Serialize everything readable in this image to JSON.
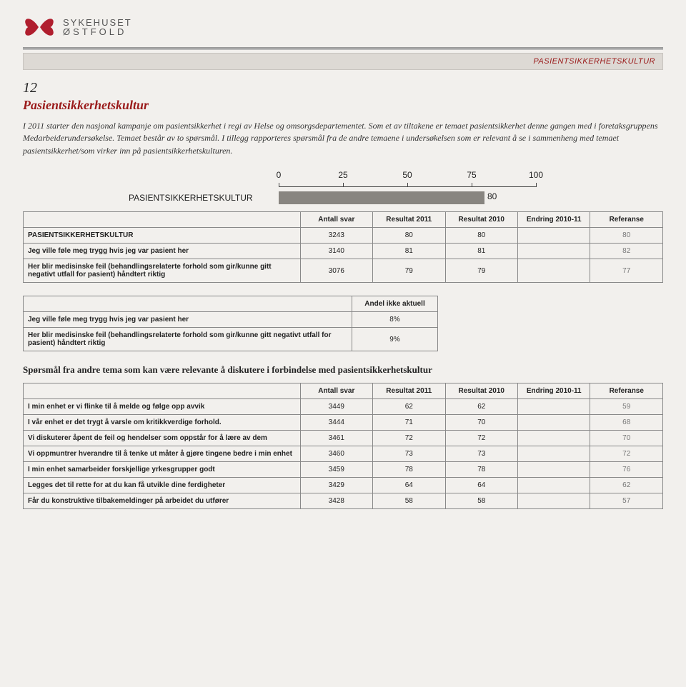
{
  "logo": {
    "line1": "SYKEHUSET",
    "line2": "ØSTFOLD"
  },
  "header_band": "PASIENTSIKKERHETSKULTUR",
  "page_number": "12",
  "title": "Pasientsikkerhetskultur",
  "intro": "I 2011 starter den nasjonal kampanje om pasientsikkerhet i regi av Helse og omsorgsdepartementet. Som et av tiltakene er temaet pasientsikkerhet denne gangen med i foretaksgruppens Medarbeiderundersøkelse. Temaet består av to spørsmål. I tillegg rapporteres spørsmål fra de andre temaene i undersøkelsen som er relevant å se i sammenheng med temaet pasientsikkerhet/som virker inn på pasientsikkerhetskulturen.",
  "chart": {
    "label": "PASIENTSIKKERHETSKULTUR",
    "value": 80,
    "max": 100,
    "ticks": [
      0,
      25,
      50,
      75,
      100
    ],
    "bar_color": "#888580"
  },
  "table1": {
    "columns": [
      "",
      "Antall svar",
      "Resultat 2011",
      "Resultat 2010",
      "Endring 2010-11",
      "Referanse"
    ],
    "rows": [
      {
        "label": "PASIENTSIKKERHETSKULTUR",
        "cells": [
          "3243",
          "80",
          "80",
          "",
          "80"
        ]
      },
      {
        "label": "Jeg ville føle meg trygg hvis jeg var pasient her",
        "cells": [
          "3140",
          "81",
          "81",
          "",
          "82"
        ]
      },
      {
        "label": "Her blir medisinske feil (behandlingsrelaterte forhold som gir/kunne gitt negativt utfall for pasient) håndtert riktig",
        "cells": [
          "3076",
          "79",
          "79",
          "",
          "77"
        ]
      }
    ]
  },
  "table2": {
    "columns": [
      "",
      "Andel ikke aktuell"
    ],
    "rows": [
      {
        "label": "Jeg ville føle meg trygg hvis jeg var pasient her",
        "cells": [
          "8%"
        ]
      },
      {
        "label": "Her blir medisinske feil (behandlingsrelaterte forhold som gir/kunne gitt negativt utfall for pasient) håndtert riktig",
        "cells": [
          "9%"
        ]
      }
    ]
  },
  "subhead": "Spørsmål fra andre tema som kan være relevante å diskutere i forbindelse med pasientsikkerhetskultur",
  "table3": {
    "columns": [
      "",
      "Antall svar",
      "Resultat 2011",
      "Resultat 2010",
      "Endring 2010-11",
      "Referanse"
    ],
    "rows": [
      {
        "label": "I min enhet er vi flinke til å melde og følge opp avvik",
        "cells": [
          "3449",
          "62",
          "62",
          "",
          "59"
        ]
      },
      {
        "label": "I vår enhet er det trygt å varsle om kritikkverdige forhold.",
        "cells": [
          "3444",
          "71",
          "70",
          "",
          "68"
        ]
      },
      {
        "label": "Vi diskuterer åpent de feil og hendelser som oppstår for å lære av dem",
        "cells": [
          "3461",
          "72",
          "72",
          "",
          "70"
        ]
      },
      {
        "label": "Vi oppmuntrer hverandre til å tenke ut måter å gjøre tingene bedre i min enhet",
        "cells": [
          "3460",
          "73",
          "73",
          "",
          "72"
        ]
      },
      {
        "label": "I min enhet samarbeider forskjellige yrkesgrupper godt",
        "cells": [
          "3459",
          "78",
          "78",
          "",
          "76"
        ]
      },
      {
        "label": "Legges det til rette for at du kan få utvikle dine ferdigheter",
        "cells": [
          "3429",
          "64",
          "64",
          "",
          "62"
        ]
      },
      {
        "label": "Får du konstruktive tilbakemeldinger på arbeidet du utfører",
        "cells": [
          "3428",
          "58",
          "58",
          "",
          "57"
        ]
      }
    ]
  }
}
